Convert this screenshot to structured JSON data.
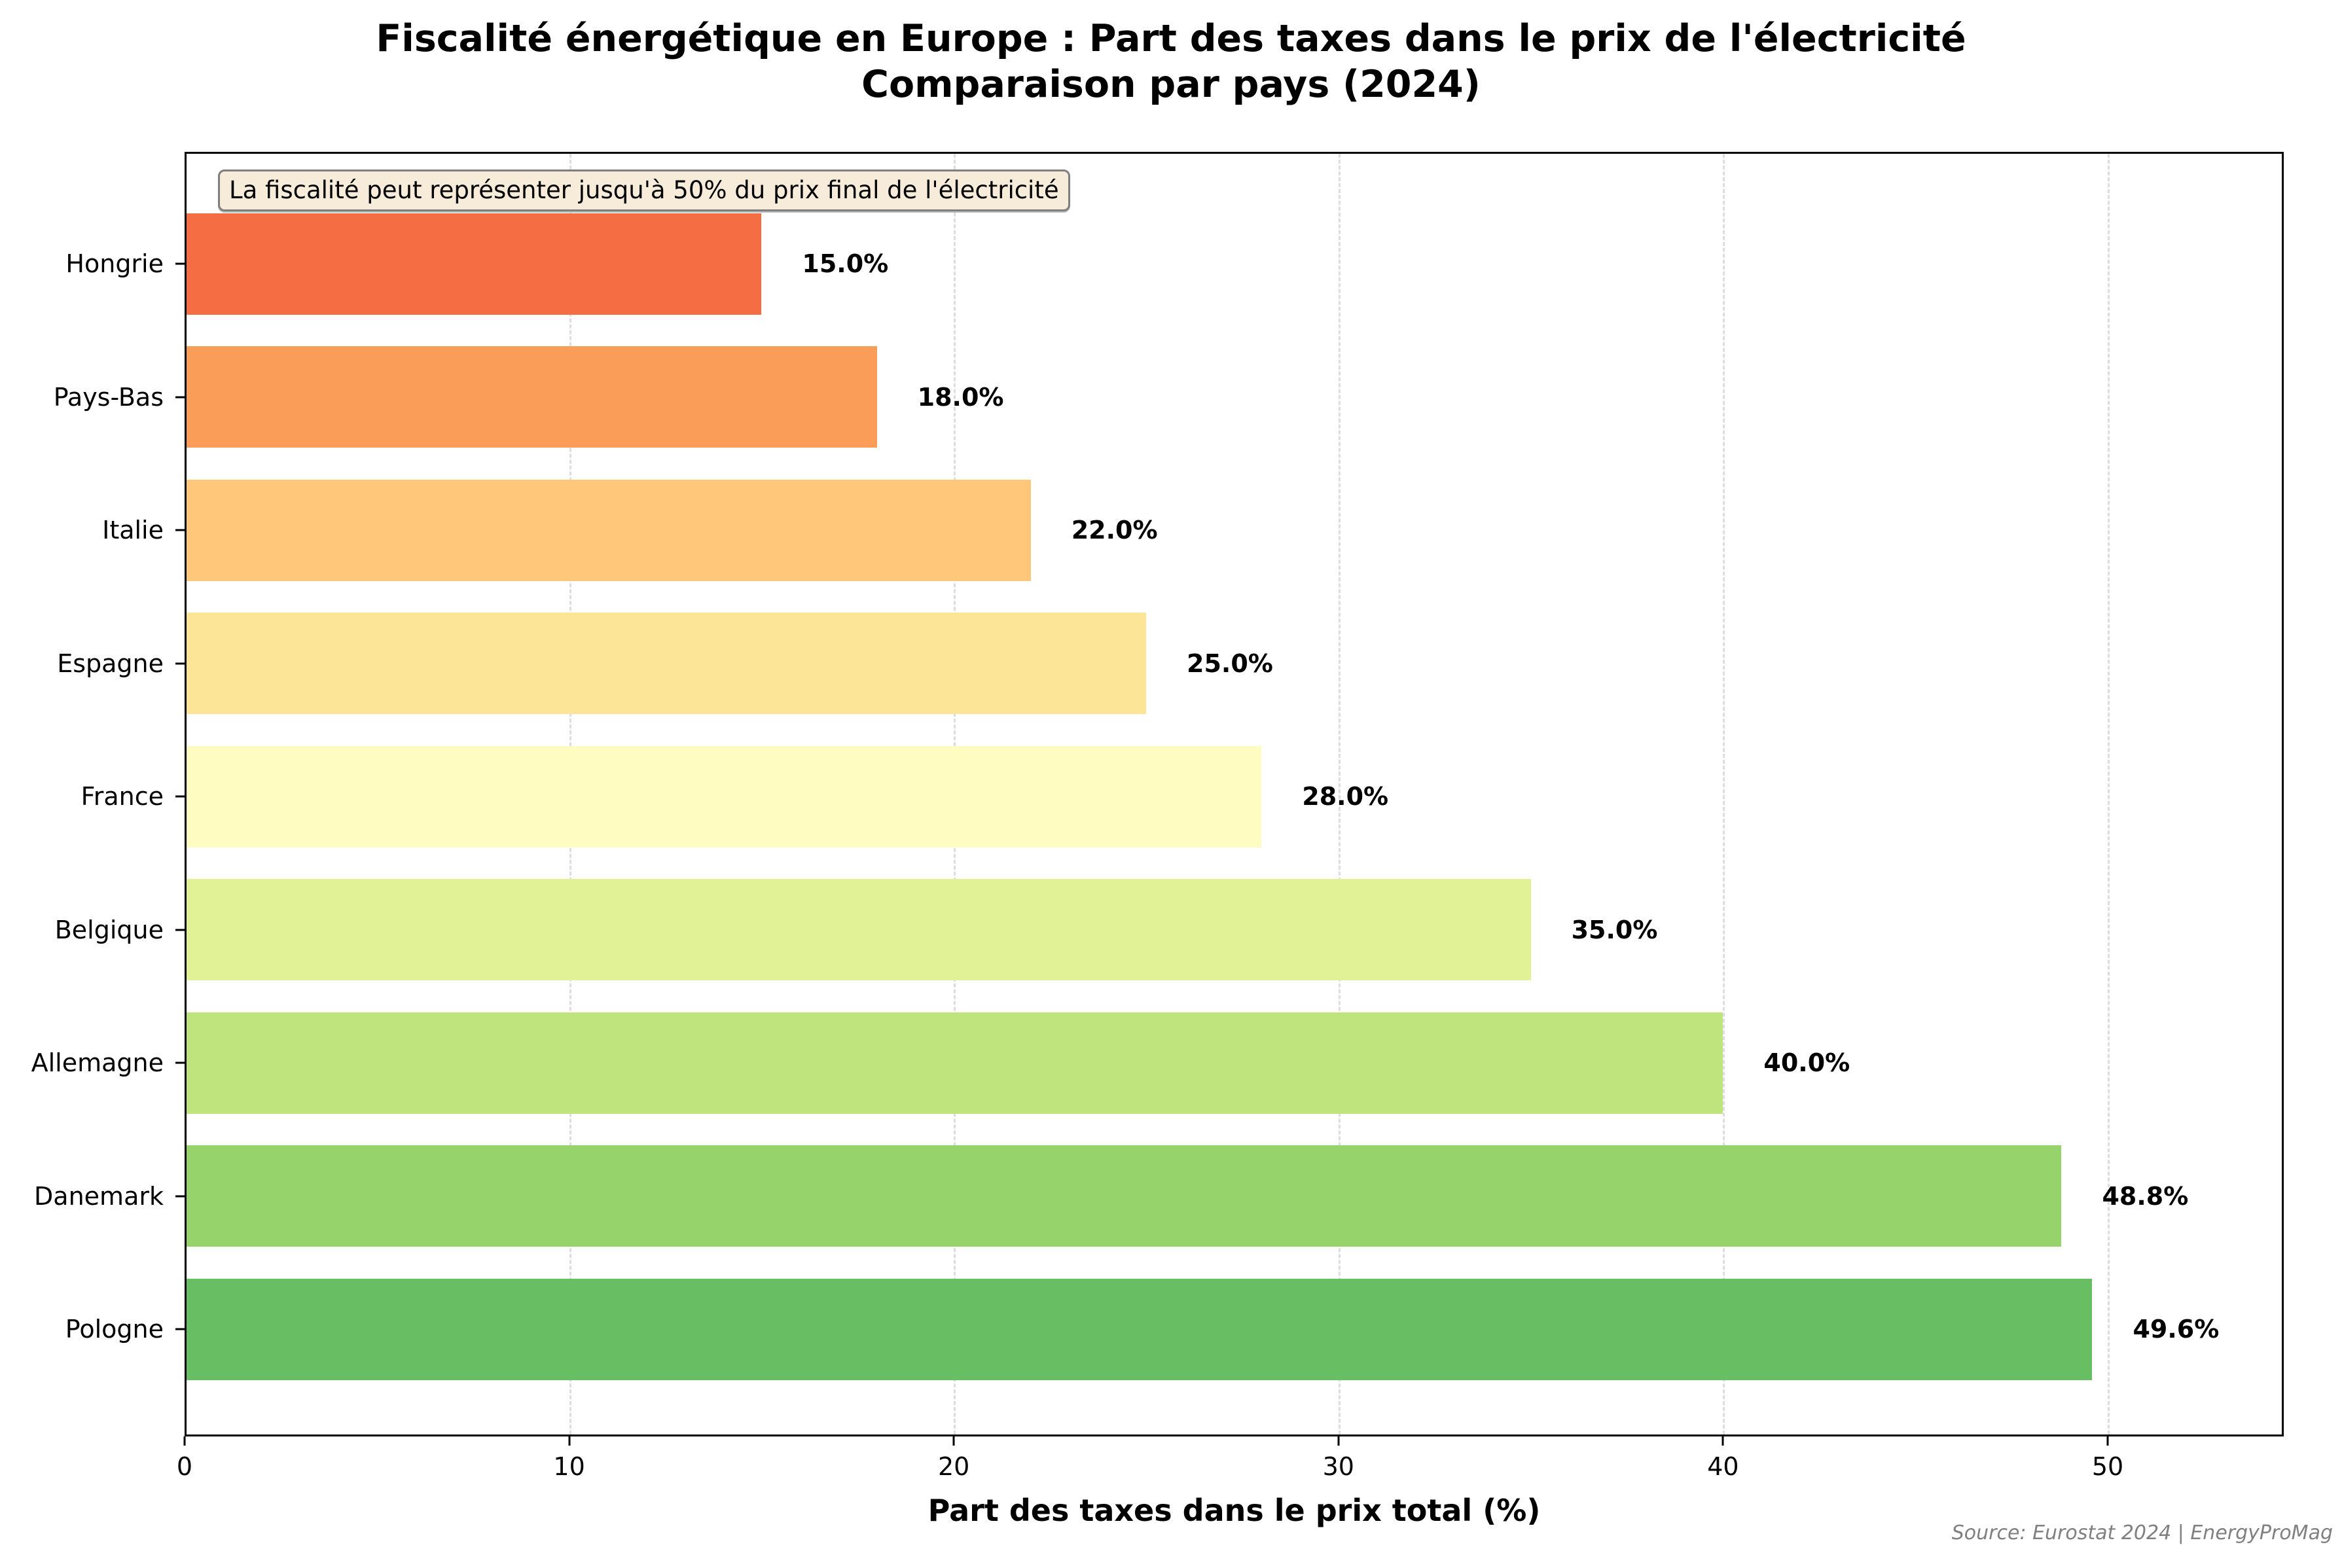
{
  "chart_data": {
    "type": "bar",
    "orientation": "horizontal",
    "title": "Fiscalité énergétique en Europe : Part des taxes dans le prix de l'électricité",
    "subtitle": "Comparaison par pays (2024)",
    "xlabel": "Part des taxes dans le prix total (%)",
    "ylabel": "",
    "xlim": [
      0,
      54.6
    ],
    "xticks": [
      0,
      10,
      20,
      30,
      40,
      50
    ],
    "grid": {
      "x": true,
      "y": false,
      "style": "dashed"
    },
    "categories": [
      "Hongrie",
      "Pays-Bas",
      "Italie",
      "Espagne",
      "France",
      "Belgique",
      "Allemagne",
      "Danemark",
      "Pologne"
    ],
    "values": [
      15.0,
      18.0,
      22.0,
      25.0,
      28.0,
      35.0,
      40.0,
      48.8,
      49.6
    ],
    "value_labels": [
      "15.0%",
      "18.0%",
      "22.0%",
      "25.0%",
      "28.0%",
      "35.0%",
      "40.0%",
      "48.8%",
      "49.6%"
    ],
    "colors": [
      "#f46d43",
      "#f99d59",
      "#fec779",
      "#fde597",
      "#fefcc0",
      "#e0f295",
      "#bfe47d",
      "#97d36b",
      "#68bf63"
    ],
    "annotation": "La fiscalité peut représenter jusqu'à 50% du prix final de l'électricité",
    "source": "Source: Eurostat 2024 | EnergyProMag"
  },
  "header": {
    "title_line1": "Fiscalité énergétique en Europe : Part des taxes dans le prix de l'électricité",
    "title_line2": "Comparaison par pays (2024)"
  },
  "annotation": "La fiscalité peut représenter jusqu'à 50% du prix final de l'électricité",
  "axes": {
    "xlabel": "Part des taxes dans le prix total (%)",
    "xtick_labels": [
      "0",
      "10",
      "20",
      "30",
      "40",
      "50"
    ]
  },
  "footer": {
    "source": "Source: Eurostat 2024 | EnergyProMag"
  }
}
